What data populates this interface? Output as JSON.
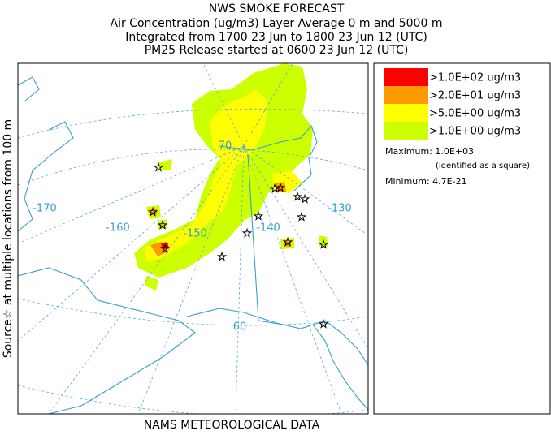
{
  "header": {
    "title": "NWS SMOKE FORECAST",
    "lines": [
      "Air Concentration (ug/m3) Layer Average    0 m and  5000 m",
      "Integrated from 1700 23 Jun to 1800 23 Jun 12 (UTC)",
      "PM25 Release started at 0600 23 Jun 12 (UTC)"
    ]
  },
  "side_label": "Source☆ at multiple locations   from   100 m",
  "footer": "NAMS METEOROLOGICAL DATA",
  "map": {
    "labels": [
      "-170",
      "-160",
      "-150",
      "-140",
      "-130",
      "70",
      "60"
    ]
  },
  "legend": {
    "items": [
      {
        "label": ">1.0E+02 ug/m3",
        "color": "#ff0000"
      },
      {
        "label": ">2.0E+01 ug/m3",
        "color": "#ff9900"
      },
      {
        "label": ">5.0E+00 ug/m3",
        "color": "#ffff00"
      },
      {
        "label": ">1.0E+00 ug/m3",
        "color": "#ccff00"
      }
    ],
    "maximum": "Maximum: 1.0E+03",
    "maximum_note": "(identified as a square)",
    "minimum": "Minimum: 4.7E-21"
  }
}
